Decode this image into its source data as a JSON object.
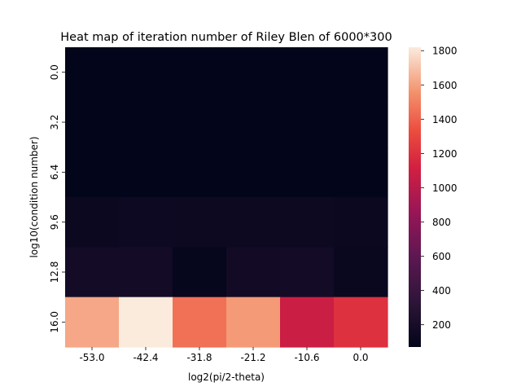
{
  "chart_data": {
    "type": "heatmap",
    "title": "Heat map of iteration number of Riley Blen of 6000*300",
    "xlabel": "log2(pi/2-theta)",
    "ylabel": "log10(condition number)",
    "x_tick_labels": [
      "-53.0",
      "-42.4",
      "-31.8",
      "-21.2",
      "-10.6",
      "0.0"
    ],
    "y_tick_labels": [
      "0.0",
      "3.2",
      "6.4",
      "9.6",
      "12.8",
      "16.0"
    ],
    "values": [
      [
        70,
        70,
        70,
        70,
        70,
        70
      ],
      [
        70,
        70,
        70,
        70,
        70,
        70
      ],
      [
        70,
        70,
        70,
        70,
        70,
        70
      ],
      [
        125,
        140,
        135,
        130,
        130,
        120
      ],
      [
        175,
        175,
        90,
        170,
        175,
        115
      ],
      [
        1620,
        1820,
        1450,
        1580,
        1080,
        1200
      ]
    ],
    "colorbar": {
      "range": [
        70,
        1820
      ],
      "ticks": [
        "200",
        "400",
        "600",
        "800",
        "1000",
        "1200",
        "1400",
        "1600",
        "1800"
      ],
      "colormap": "rocket"
    },
    "grid": false
  }
}
